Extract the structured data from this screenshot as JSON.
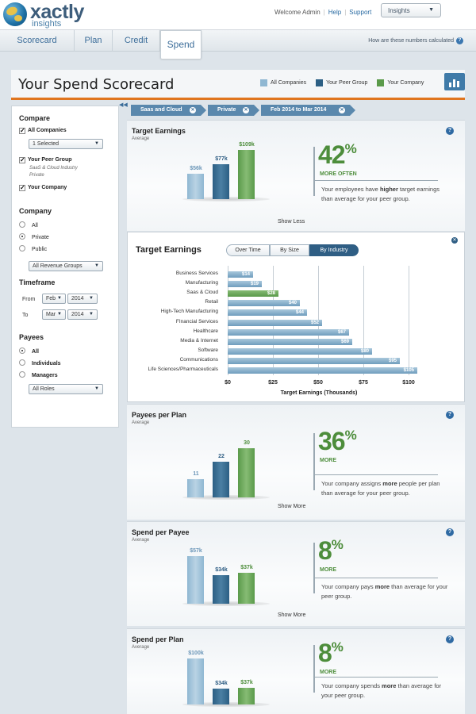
{
  "brand": {
    "name": "xactly",
    "sub": "insights"
  },
  "header": {
    "welcome": "Welcome Admin",
    "help": "Help",
    "support": "Support",
    "app_select": "Insights"
  },
  "nav": {
    "tabs": [
      {
        "label": "Scorecard"
      },
      {
        "label": "Plan"
      },
      {
        "label": "Credit"
      },
      {
        "label": "Spend"
      }
    ],
    "how_calc": "How are these numbers calculated"
  },
  "page": {
    "title": "Your Spend Scorecard"
  },
  "legend": [
    {
      "label": "All Companies",
      "color": "#8fb7d2"
    },
    {
      "label": "Your Peer Group",
      "color": "#2c5f84"
    },
    {
      "label": "Your Company",
      "color": "#5a9a4a"
    }
  ],
  "filters": [
    {
      "label": "Saas and Cloud"
    },
    {
      "label": "Private"
    },
    {
      "label": "Feb 2014 to Mar 2014"
    }
  ],
  "sidebar": {
    "compare_heading": "Compare",
    "all_companies": "All Companies",
    "selected": "1 Selected",
    "peer_group": "Your Peer Group",
    "peer_sub1": "SaaS & Cloud Industry",
    "peer_sub2": "Private",
    "your_company": "Your Company",
    "company_heading": "Company",
    "company_options": [
      "All",
      "Private",
      "Public"
    ],
    "revenue_groups": "All Revenue Groups",
    "timeframe_heading": "Timeframe",
    "from_label": "From",
    "from_month": "Feb",
    "from_year": "2014",
    "to_label": "To",
    "to_month": "Mar",
    "to_year": "2014",
    "payees_heading": "Payees",
    "payee_options": [
      "All",
      "Individuals",
      "Managers"
    ],
    "roles": "All Roles"
  },
  "panels": [
    {
      "title": "Target Earnings",
      "subtitle": "Average",
      "labels": [
        "$56k",
        "$77k",
        "$109k"
      ],
      "values": [
        56,
        77,
        109
      ],
      "pct": "42",
      "pct_sub": "MORE OFTEN",
      "desc_a": "Your employees have ",
      "desc_b": "higher",
      "desc_c": " target earnings than average for your peer group.",
      "link": "Show Less"
    },
    {
      "title": "Payees per Plan",
      "subtitle": "Average",
      "labels": [
        "11",
        "22",
        "30"
      ],
      "values": [
        11,
        22,
        30
      ],
      "pct": "36",
      "pct_sub": "MORE",
      "desc_a": "Your company assigns ",
      "desc_b": "more",
      "desc_c": " people per plan than average for your peer group.",
      "link": "Show More"
    },
    {
      "title": "Spend per Payee",
      "subtitle": "Average",
      "labels": [
        "$57k",
        "$34k",
        "$37k"
      ],
      "values": [
        57,
        34,
        37
      ],
      "pct": "8",
      "pct_sub": "MORE",
      "desc_a": "Your company pays ",
      "desc_b": "more",
      "desc_c": " than average for your peer group.",
      "link": "Show More"
    },
    {
      "title": "Spend per Plan",
      "subtitle": "Average",
      "labels": [
        "$100k",
        "$34k",
        "$37k"
      ],
      "values": [
        100,
        34,
        37
      ],
      "pct": "8",
      "pct_sub": "MORE",
      "desc_a": "Your company spends ",
      "desc_b": "more",
      "desc_c": " than average for your peer group.",
      "link": ""
    }
  ],
  "industry_chart": {
    "title": "Target Earnings",
    "views": [
      "Over Time",
      "By Size",
      "By Industry"
    ],
    "active_view": "By Industry",
    "chart_data": {
      "type": "bar",
      "orientation": "horizontal",
      "categories": [
        "Business Services",
        "Manufacturing",
        "Saas & Cloud",
        "Retail",
        "High-Tech Manufacturing",
        "FInancial Services",
        "Healthcare",
        "Media & Internet",
        "Software",
        "Communications",
        "Life Sciences/Pharmaceuticals"
      ],
      "values": [
        14,
        19,
        28,
        40,
        44,
        52,
        67,
        69,
        80,
        95,
        105
      ],
      "value_labels": [
        "$14",
        "$19",
        "$28",
        "$40",
        "$44",
        "$52",
        "$67",
        "$69",
        "$80",
        "$95",
        "$105"
      ],
      "highlight": "Saas & Cloud",
      "xticks": [
        "$0",
        "$25",
        "$50",
        "$75",
        "$100"
      ],
      "xlabel": "Target Earnings (Thousands)",
      "xlim": [
        0,
        100
      ],
      "grid": true
    }
  }
}
